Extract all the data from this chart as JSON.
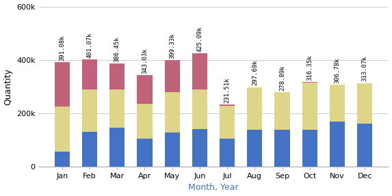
{
  "months": [
    "Jan",
    "Feb",
    "Mar",
    "Apr",
    "May",
    "Jun",
    "Jul",
    "Aug",
    "Sep",
    "Oct",
    "Nov",
    "Dec"
  ],
  "blue_values": [
    55000,
    130000,
    145000,
    105000,
    128000,
    140000,
    105000,
    138000,
    138000,
    138000,
    168000,
    160000
  ],
  "yellow_values": [
    170000,
    160000,
    145000,
    130000,
    152000,
    150000,
    122000,
    158000,
    140000,
    176000,
    138000,
    152000
  ],
  "red_values": [
    166080,
    111070,
    96450,
    108030,
    119330,
    135090,
    4510,
    1690,
    890,
    2350,
    780,
    1070
  ],
  "totals": [
    391080,
    401070,
    386450,
    343030,
    399330,
    425090,
    231510,
    297690,
    278890,
    316350,
    306780,
    313070
  ],
  "total_labels": [
    "391.08k",
    "401.07k",
    "386.45k",
    "343.03k",
    "399.33k",
    "425.09k",
    "231.51k",
    "297.69k",
    "278.89k",
    "316.35k",
    "306.78k",
    "313.07k"
  ],
  "blue_color": "#4472c4",
  "yellow_color": "#ddd587",
  "red_color": "#c0637a",
  "ylabel": "Quantity",
  "xlabel": "Month, Year",
  "xlabel_color": "#4472c4",
  "ylim": [
    0,
    600000
  ],
  "yticks": [
    0,
    200000,
    400000,
    600000
  ],
  "ytick_labels": [
    "0",
    "200k",
    "400k",
    "600k"
  ],
  "background_color": "#ffffff",
  "grid_color": "#d0d0d0",
  "label_fontsize": 6.5,
  "axis_label_fontsize": 9,
  "tick_fontsize": 8,
  "bar_width": 0.55
}
